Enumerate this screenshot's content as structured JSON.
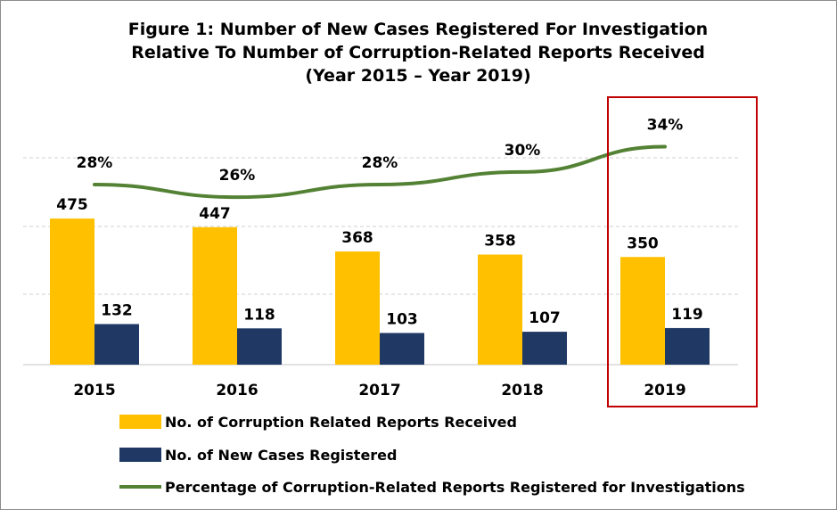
{
  "colors": {
    "reports": "#FFC000",
    "cases": "#1F3864",
    "percentage": "#548235",
    "highlight": "#C00000",
    "gridline": "#d9d9d9"
  },
  "chart_data": {
    "type": "bar",
    "title": [
      "Figure 1: Number of New Cases Registered For Investigation",
      "Relative To Number of Corruption-Related Reports Received",
      "(Year 2015 – Year 2019)"
    ],
    "categories": [
      "2015",
      "2016",
      "2017",
      "2018",
      "2019"
    ],
    "series": [
      {
        "name": "No. of Corruption Related Reports Received",
        "kind": "bar",
        "values": [
          475,
          447,
          368,
          358,
          350
        ]
      },
      {
        "name": "No. of New Cases Registered",
        "kind": "bar",
        "values": [
          132,
          118,
          103,
          107,
          119
        ]
      },
      {
        "name": "Percentage of Corruption-Related Reports Registered for Investigations",
        "kind": "line",
        "values": [
          28,
          26,
          28,
          30,
          34
        ],
        "labels": [
          "28%",
          "26%",
          "28%",
          "30%",
          "34%"
        ]
      }
    ],
    "highlighted_category": "2019",
    "grid": true,
    "legend_position": "bottom"
  }
}
